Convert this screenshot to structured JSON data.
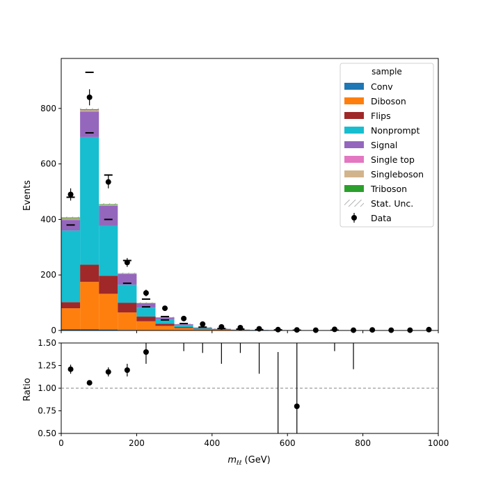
{
  "chart_data": {
    "type": "bar",
    "stacked": true,
    "xlabel": "m_ℓℓ (GeV)",
    "xlabel_main": "m",
    "xlabel_sub": "ℓℓ",
    "xlabel_unit": " (GeV)",
    "ylabel": "Events",
    "ratio_ylabel": "Ratio",
    "xlim": [
      0,
      1000
    ],
    "ylim": [
      0,
      980
    ],
    "ratio_ylim": [
      0.5,
      1.5
    ],
    "x_ticks": [
      "0",
      "200",
      "400",
      "600",
      "800",
      "1000"
    ],
    "y_ticks": [
      "0",
      "200",
      "400",
      "600",
      "800"
    ],
    "ratio_ticks": [
      "0.50",
      "0.75",
      "1.00",
      "1.25",
      "1.50"
    ],
    "ratio_reference": 1.0,
    "bin_edges": [
      0,
      50,
      100,
      150,
      200,
      250,
      300,
      350,
      400,
      450,
      500,
      550,
      600,
      650,
      700,
      750,
      800,
      850,
      900,
      950,
      1000
    ],
    "series": [
      {
        "name": "Conv",
        "color": "#1f77b4",
        "values": [
          5,
          5,
          4,
          2,
          1,
          0.5,
          0.3,
          0.2,
          0.1,
          0.1,
          0,
          0,
          0,
          0,
          0,
          0,
          0,
          0,
          0,
          0
        ]
      },
      {
        "name": "Diboson",
        "color": "#ff7f0e",
        "values": [
          75,
          170,
          128,
          63,
          32,
          16,
          8,
          4,
          2.5,
          1.5,
          1,
          0.6,
          0.4,
          0.3,
          0.2,
          0.2,
          0.1,
          0.1,
          0.1,
          0.1
        ]
      },
      {
        "name": "Flips",
        "color": "#a02828",
        "values": [
          22,
          62,
          65,
          35,
          17,
          8,
          4,
          2,
          1,
          0.6,
          0.3,
          0.2,
          0.1,
          0.1,
          0,
          0,
          0,
          0,
          0,
          0
        ]
      },
      {
        "name": "Nonprompt",
        "color": "#17becf",
        "values": [
          258,
          460,
          180,
          65,
          32,
          16,
          7,
          3,
          1.5,
          0.8,
          0.5,
          0.3,
          0.2,
          0.1,
          0.1,
          0.1,
          0,
          0,
          0,
          0
        ]
      },
      {
        "name": "Signal",
        "color": "#9467bd",
        "values": [
          38,
          90,
          72,
          38,
          16,
          6,
          3,
          1.5,
          0.8,
          0.4,
          0.3,
          0.2,
          0.1,
          0.1,
          0,
          0,
          0,
          0,
          0,
          0
        ]
      },
      {
        "name": "Single top",
        "color": "#e377c2",
        "values": [
          3,
          4,
          2,
          1,
          0.5,
          0.3,
          0.2,
          0.1,
          0,
          0,
          0,
          0,
          0,
          0,
          0,
          0,
          0,
          0,
          0,
          0
        ]
      },
      {
        "name": "Singleboson",
        "color": "#d2b48c",
        "values": [
          3,
          3,
          2,
          1,
          0.5,
          0.3,
          0.2,
          0.1,
          0,
          0,
          0,
          0,
          0,
          0,
          0,
          0,
          0,
          0,
          0,
          0
        ]
      },
      {
        "name": "Triboson",
        "color": "#2ca02c",
        "values": [
          3,
          3,
          2,
          1,
          0.5,
          0.3,
          0.2,
          0.1,
          0.1,
          0,
          0,
          0,
          0,
          0,
          0,
          0,
          0,
          0,
          0,
          0
        ]
      }
    ],
    "stat_unc_label": "Stat. Unc.",
    "data": {
      "name": "Data",
      "values": [
        490,
        840,
        535,
        245,
        135,
        80,
        43,
        23,
        13,
        10,
        6,
        3,
        2,
        1,
        4,
        1,
        2,
        1,
        1,
        3
      ],
      "errors": [
        22,
        29,
        23,
        16,
        12,
        9,
        7,
        5,
        4,
        3,
        2.5,
        1.7,
        1.4,
        1,
        2,
        1,
        1.4,
        1,
        1,
        1.7
      ]
    },
    "alt_markers": [
      380,
      930,
      400,
      170,
      85,
      38,
      25,
      12,
      7,
      5,
      3,
      2,
      1,
      0.5,
      1,
      0.5,
      0.5,
      0.3,
      0.3,
      0.5
    ],
    "alt_markers_right": [
      480,
      712,
      560,
      252,
      113,
      50
    ],
    "ratio": {
      "values": [
        1.21,
        1.06,
        1.18,
        1.2,
        1.4
      ],
      "errors": [
        0.05,
        0.02,
        0.05,
        0.07,
        0.13
      ],
      "bars": [
        {
          "x": 325,
          "lo": 1.41,
          "hi": 1.5
        },
        {
          "x": 375,
          "lo": 1.39,
          "hi": 1.5
        },
        {
          "x": 425,
          "lo": 1.27,
          "hi": 1.5
        },
        {
          "x": 475,
          "lo": 1.39,
          "hi": 1.5
        },
        {
          "x": 525,
          "lo": 1.16,
          "hi": 1.5
        },
        {
          "x": 575,
          "lo": 0.5,
          "hi": 1.4
        },
        {
          "x": 625,
          "lo": 0.5,
          "hi": 1.5,
          "point": 0.8
        },
        {
          "x": 725,
          "lo": 1.41,
          "hi": 1.5
        },
        {
          "x": 775,
          "lo": 1.21,
          "hi": 1.5
        }
      ]
    },
    "legend": {
      "title": "sample",
      "placement": "top-right"
    }
  }
}
